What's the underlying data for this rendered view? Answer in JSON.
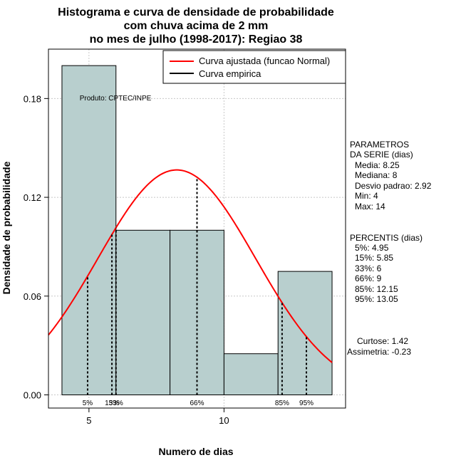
{
  "chart_data": {
    "type": "histogram",
    "title_lines": [
      "Histograma e curva de densidade de probabilidade",
      "com chuva acima de 2 mm",
      "no mes de julho (1998-2017): Regiao 38"
    ],
    "xlabel": "Numero de dias",
    "ylabel": "Densidade de probabilidade",
    "xlim": [
      3.5,
      14.5
    ],
    "ylim": [
      -0.008,
      0.21
    ],
    "x_ticks": [
      5,
      10
    ],
    "y_ticks": [
      "0.00",
      "0.06",
      "0.12",
      "0.18"
    ],
    "bins": [
      {
        "from": 4,
        "to": 6,
        "density": 0.2
      },
      {
        "from": 6,
        "to": 8,
        "density": 0.1
      },
      {
        "from": 8,
        "to": 10,
        "density": 0.1
      },
      {
        "from": 10,
        "to": 12,
        "density": 0.025
      },
      {
        "from": 12,
        "to": 14,
        "density": 0.075
      }
    ],
    "normal_curve": {
      "mean": 8.25,
      "sd": 2.92
    },
    "percentile_lines": [
      {
        "label": "5%",
        "x": 4.95
      },
      {
        "label": "15%",
        "x": 5.85
      },
      {
        "label": "33%",
        "x": 6
      },
      {
        "label": "66%",
        "x": 9
      },
      {
        "label": "85%",
        "x": 12.15
      },
      {
        "label": "95%",
        "x": 13.05
      }
    ],
    "legend": [
      {
        "label": "Curva ajustada (funcao Normal)",
        "color": "#ff0000"
      },
      {
        "label": "Curva empirica",
        "color": "#000000"
      }
    ],
    "annotation": "Produto: CPTEC/INPE",
    "bar_color": "#b8cfce",
    "curve_color": "#ff0000"
  },
  "side_panel": {
    "parametros": [
      "PARAMETROS",
      "DA SERIE (dias)",
      "Media: 8.25",
      "Mediana: 8",
      "Desvio padrao: 2.92",
      "Min: 4",
      "Max: 14"
    ],
    "percentis": [
      "PERCENTIS (dias)",
      "5%: 4.95",
      "15%: 5.85",
      "33%: 6",
      "66%: 9",
      "85%: 12.15",
      "95%: 13.05"
    ],
    "curtose": "Curtose: 1.42",
    "assimetria": "Assimetria: -0.23"
  }
}
